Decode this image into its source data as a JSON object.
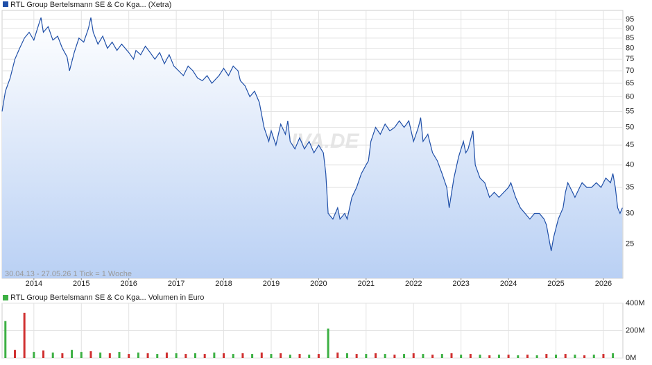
{
  "chart_data": [
    {
      "type": "line",
      "annotation": "30.04.13 - 27.05.26   1 Tick = 1 Woche",
      "watermark": "ARIVA.DE",
      "log_scale": true,
      "grid": true,
      "xlim": [
        2013.33,
        2026.41
      ],
      "xticks": [
        2014,
        2015,
        2016,
        2017,
        2018,
        2019,
        2020,
        2021,
        2022,
        2023,
        2024,
        2025,
        2026
      ],
      "ylim": [
        20.4,
        100.2
      ],
      "yticks": [
        25,
        30,
        35,
        40,
        45,
        50,
        55,
        60,
        65,
        70,
        75,
        80,
        85,
        90,
        95
      ],
      "x": [
        2013.33,
        2013.4,
        2013.5,
        2013.6,
        2013.7,
        2013.8,
        2013.9,
        2014.0,
        2014.1,
        2014.15,
        2014.2,
        2014.3,
        2014.4,
        2014.5,
        2014.6,
        2014.7,
        2014.75,
        2014.85,
        2014.95,
        2015.05,
        2015.15,
        2015.2,
        2015.25,
        2015.35,
        2015.45,
        2015.55,
        2015.65,
        2015.75,
        2015.85,
        2016.0,
        2016.1,
        2016.15,
        2016.25,
        2016.35,
        2016.45,
        2016.55,
        2016.65,
        2016.75,
        2016.85,
        2016.95,
        2017.05,
        2017.15,
        2017.25,
        2017.35,
        2017.45,
        2017.55,
        2017.65,
        2017.75,
        2017.9,
        2018.0,
        2018.1,
        2018.2,
        2018.3,
        2018.35,
        2018.45,
        2018.55,
        2018.65,
        2018.75,
        2018.85,
        2018.95,
        2019.0,
        2019.1,
        2019.2,
        2019.3,
        2019.35,
        2019.4,
        2019.5,
        2019.6,
        2019.7,
        2019.8,
        2019.9,
        2020.0,
        2020.1,
        2020.15,
        2020.2,
        2020.3,
        2020.4,
        2020.45,
        2020.55,
        2020.6,
        2020.7,
        2020.8,
        2020.9,
        2021.0,
        2021.05,
        2021.1,
        2021.2,
        2021.3,
        2021.4,
        2021.5,
        2021.6,
        2021.7,
        2021.8,
        2021.9,
        2022.0,
        2022.1,
        2022.15,
        2022.2,
        2022.3,
        2022.4,
        2022.5,
        2022.6,
        2022.7,
        2022.75,
        2022.85,
        2022.95,
        2023.05,
        2023.1,
        2023.15,
        2023.25,
        2023.3,
        2023.4,
        2023.5,
        2023.6,
        2023.7,
        2023.8,
        2023.9,
        2024.0,
        2024.05,
        2024.15,
        2024.25,
        2024.35,
        2024.45,
        2024.55,
        2024.65,
        2024.75,
        2024.8,
        2024.9,
        2024.95,
        2025.05,
        2025.15,
        2025.2,
        2025.25,
        2025.35,
        2025.4,
        2025.5,
        2025.55,
        2025.65,
        2025.75,
        2025.85,
        2025.95,
        2026.05,
        2026.15,
        2026.2,
        2026.25,
        2026.3,
        2026.35,
        2026.4
      ],
      "series": [
        {
          "name": "RTL Group Bertelsmann SE & Co Kga... (Xetra)",
          "color": "#1f4fa8",
          "values": [
            55,
            62,
            67,
            75,
            80,
            85,
            88,
            84,
            92,
            96,
            88,
            91,
            84,
            86,
            80,
            76,
            70,
            78,
            85,
            83,
            90,
            96,
            88,
            82,
            86,
            80,
            83,
            79,
            82,
            78,
            75,
            79,
            77,
            81,
            78,
            75,
            78,
            73,
            77,
            72,
            70,
            68,
            72,
            70,
            67,
            66,
            68,
            65,
            68,
            71,
            68,
            72,
            70,
            66,
            64,
            60,
            62,
            58,
            50,
            46,
            49,
            45,
            51,
            48,
            52,
            46,
            44,
            47,
            44,
            46,
            43,
            45,
            43,
            38,
            30,
            29,
            31,
            29,
            30,
            29,
            33,
            35,
            38,
            40,
            41,
            46,
            50,
            48,
            51,
            49,
            50,
            52,
            50,
            52,
            46,
            50,
            53,
            46,
            48,
            43,
            41,
            38,
            35,
            31,
            37,
            42,
            46,
            43,
            44,
            49,
            40,
            37,
            36,
            33,
            34,
            33,
            34,
            35,
            36,
            33,
            31,
            30,
            29,
            30,
            30,
            29,
            28,
            24,
            26,
            29,
            31,
            34,
            36,
            34,
            33,
            35,
            36,
            35,
            35,
            36,
            35,
            37,
            36,
            38,
            35,
            31,
            30,
            31
          ]
        }
      ]
    },
    {
      "type": "bar",
      "grid": true,
      "xlim": [
        2013.33,
        2026.41
      ],
      "xticks": [
        2014,
        2015,
        2016,
        2017,
        2018,
        2019,
        2020,
        2021,
        2022,
        2023,
        2024,
        2025,
        2026
      ],
      "ylim": [
        0,
        400
      ],
      "yticks": [
        {
          "value": 0,
          "label": "0M"
        },
        {
          "value": 200,
          "label": "200M"
        },
        {
          "value": 400,
          "label": "400M"
        }
      ],
      "x": [
        2013.4,
        2013.6,
        2013.8,
        2014.0,
        2014.2,
        2014.4,
        2014.6,
        2014.8,
        2015.0,
        2015.2,
        2015.4,
        2015.6,
        2015.8,
        2016.0,
        2016.2,
        2016.4,
        2016.6,
        2016.8,
        2017.0,
        2017.2,
        2017.4,
        2017.6,
        2017.8,
        2018.0,
        2018.2,
        2018.4,
        2018.6,
        2018.8,
        2019.0,
        2019.2,
        2019.4,
        2019.6,
        2019.8,
        2020.0,
        2020.2,
        2020.4,
        2020.6,
        2020.8,
        2021.0,
        2021.2,
        2021.4,
        2021.6,
        2021.8,
        2022.0,
        2022.2,
        2022.4,
        2022.6,
        2022.8,
        2023.0,
        2023.2,
        2023.4,
        2023.6,
        2023.8,
        2024.0,
        2024.2,
        2024.4,
        2024.6,
        2024.8,
        2025.0,
        2025.2,
        2025.4,
        2025.6,
        2025.8,
        2026.0,
        2026.2
      ],
      "bar_colors": [
        "#3cb043",
        "#d03030",
        "#d03030",
        "#3cb043",
        "#d03030",
        "#3cb043",
        "#d03030",
        "#3cb043",
        "#3cb043",
        "#d03030",
        "#3cb043",
        "#d03030",
        "#3cb043",
        "#d03030",
        "#3cb043",
        "#d03030",
        "#3cb043",
        "#d03030",
        "#3cb043",
        "#d03030",
        "#3cb043",
        "#d03030",
        "#3cb043",
        "#d03030",
        "#3cb043",
        "#d03030",
        "#3cb043",
        "#d03030",
        "#3cb043",
        "#d03030",
        "#3cb043",
        "#d03030",
        "#3cb043",
        "#d03030",
        "#3cb043",
        "#d03030",
        "#3cb043",
        "#d03030",
        "#3cb043",
        "#d03030",
        "#3cb043",
        "#d03030",
        "#3cb043",
        "#d03030",
        "#3cb043",
        "#d03030",
        "#3cb043",
        "#d03030",
        "#3cb043",
        "#d03030",
        "#3cb043",
        "#d03030",
        "#3cb043",
        "#d03030",
        "#3cb043",
        "#d03030",
        "#3cb043",
        "#d03030",
        "#3cb043",
        "#d03030",
        "#3cb043",
        "#d03030",
        "#3cb043",
        "#d03030",
        "#3cb043"
      ],
      "series": [
        {
          "name": "RTL Group Bertelsmann SE & Co Kga... Volumen in Euro",
          "color": "#3cb043",
          "values": [
            270,
            60,
            330,
            45,
            55,
            40,
            35,
            60,
            45,
            50,
            40,
            35,
            45,
            30,
            40,
            35,
            30,
            40,
            35,
            30,
            35,
            30,
            40,
            35,
            30,
            35,
            30,
            40,
            30,
            35,
            25,
            30,
            25,
            30,
            215,
            40,
            35,
            30,
            30,
            35,
            30,
            25,
            30,
            35,
            30,
            25,
            30,
            35,
            25,
            30,
            25,
            20,
            25,
            25,
            20,
            25,
            20,
            30,
            25,
            30,
            25,
            20,
            25,
            30,
            35
          ]
        }
      ]
    }
  ]
}
